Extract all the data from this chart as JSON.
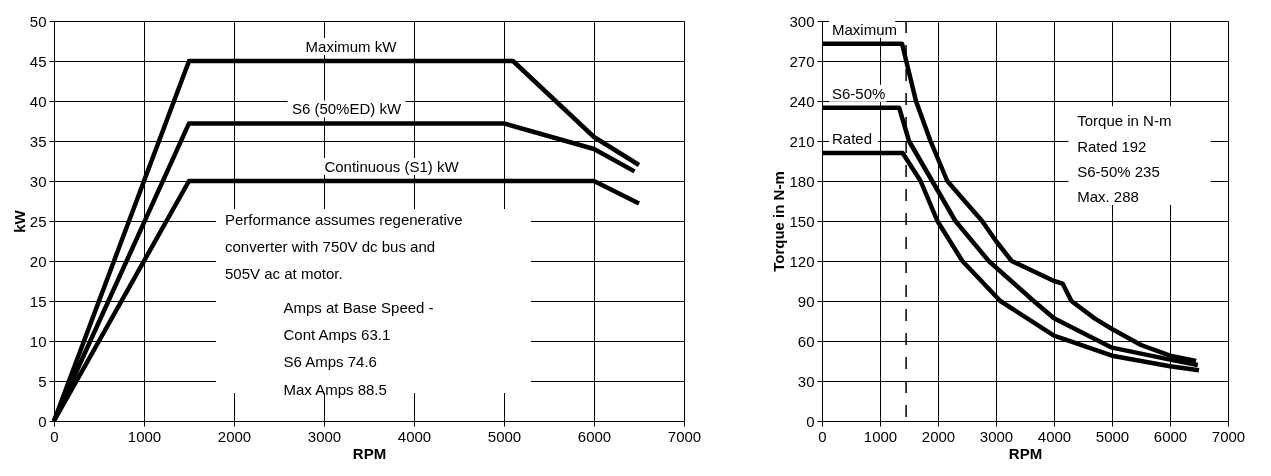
{
  "chart_data": [
    {
      "type": "line",
      "xlabel": "RPM",
      "ylabel": "kW",
      "xlim": [
        0,
        7000
      ],
      "ylim": [
        0,
        50
      ],
      "xticks": [
        0,
        1000,
        2000,
        3000,
        4000,
        5000,
        6000,
        7000
      ],
      "yticks": [
        0,
        5,
        10,
        15,
        20,
        25,
        30,
        35,
        40,
        45,
        50
      ],
      "grid": true,
      "series": [
        {
          "name": "Maximum kW",
          "color": "#000000",
          "x": [
            0,
            1500,
            5100,
            6000,
            6500
          ],
          "values": [
            0,
            45,
            45,
            35.5,
            32
          ]
        },
        {
          "name": "S6 (50%ED) kW",
          "color": "#000000",
          "x": [
            0,
            1500,
            5000,
            6000,
            6450
          ],
          "values": [
            0,
            37.2,
            37.2,
            34,
            31.2
          ]
        },
        {
          "name": "Continuous (S1) kW",
          "color": "#000000",
          "x": [
            0,
            1500,
            6000,
            6500
          ],
          "values": [
            0,
            30,
            30,
            27.2
          ]
        }
      ],
      "annotations": [
        "Performance assumes regenerative",
        "converter with 750V dc bus and",
        "505V ac at motor.",
        "Amps at Base Speed -",
        "Cont Amps 63.1",
        "S6 Amps 74.6",
        "Max Amps 88.5"
      ]
    },
    {
      "type": "line",
      "xlabel": "RPM",
      "ylabel": "Torque in N-m",
      "xlim": [
        0,
        7000
      ],
      "ylim": [
        0,
        300
      ],
      "xticks": [
        0,
        1000,
        2000,
        3000,
        4000,
        5000,
        6000,
        7000
      ],
      "yticks": [
        0,
        30,
        60,
        90,
        120,
        150,
        180,
        210,
        240,
        270,
        300
      ],
      "grid": true,
      "series": [
        {
          "name": "Maximum",
          "color": "#000000",
          "x": [
            0,
            1380,
            1620,
            1870,
            2160,
            2760,
            3000,
            3270,
            4000,
            4150,
            4300,
            4700,
            5000,
            5500,
            6000,
            6450
          ],
          "values": [
            283,
            283,
            240,
            210,
            180,
            150,
            135,
            120,
            105,
            103,
            90,
            77,
            69,
            57,
            49,
            45
          ]
        },
        {
          "name": "S6-50%",
          "color": "#000000",
          "x": [
            0,
            1330,
            1500,
            1900,
            2300,
            2875,
            3650,
            4000,
            5000,
            6000,
            6480
          ],
          "values": [
            235,
            235,
            210,
            180,
            150,
            120,
            90,
            77,
            55,
            46,
            42
          ]
        },
        {
          "name": "Rated",
          "color": "#000000",
          "x": [
            0,
            1390,
            1700,
            1990,
            2420,
            3075,
            4000,
            5000,
            6000,
            6500
          ],
          "values": [
            201,
            201,
            180,
            150,
            120,
            90,
            64,
            49,
            41,
            38
          ]
        }
      ],
      "ref_lines": [
        {
          "axis": "x",
          "value": 1450,
          "line_style": "dashed",
          "color": "#000000"
        }
      ],
      "annotations": [
        "Torque in N-m",
        "Rated 192",
        "S6-50% 235",
        "Max. 288"
      ]
    }
  ]
}
